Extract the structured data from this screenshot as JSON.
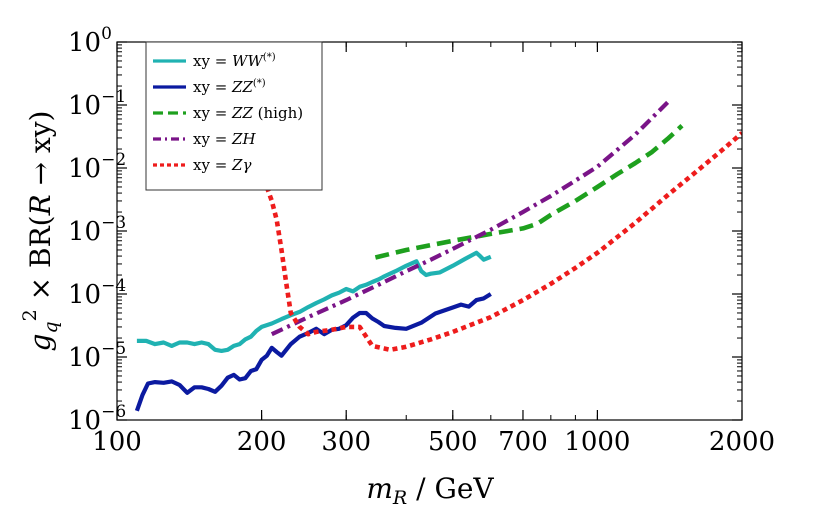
{
  "chart_data": {
    "type": "line",
    "title": "",
    "xlabel": {
      "var": "m",
      "sub": "R",
      "rest": " / GeV"
    },
    "ylabel": {
      "g": "g",
      "sub": "q",
      "sup": "2",
      "rest": " × BR(",
      "R": "R",
      "arrow": " → xy)"
    },
    "x_scale": "log",
    "y_scale": "log",
    "xlim": [
      100,
      2000
    ],
    "ylim": [
      1e-06,
      1
    ],
    "x_ticks": [
      {
        "value": 100,
        "label": "100"
      },
      {
        "value": 200,
        "label": "200"
      },
      {
        "value": 300,
        "label": "300"
      },
      {
        "value": 500,
        "label": "500"
      },
      {
        "value": 700,
        "label": "700"
      },
      {
        "value": 1000,
        "label": "1000"
      },
      {
        "value": 2000,
        "label": "2000"
      }
    ],
    "y_ticks": [
      {
        "value": 1,
        "base": "10",
        "exp": "0"
      },
      {
        "value": 0.1,
        "base": "10",
        "exp": "−1"
      },
      {
        "value": 0.01,
        "base": "10",
        "exp": "−2"
      },
      {
        "value": 0.001,
        "base": "10",
        "exp": "−3"
      },
      {
        "value": 0.0001,
        "base": "10",
        "exp": "−4"
      },
      {
        "value": 1e-05,
        "base": "10",
        "exp": "−5"
      },
      {
        "value": 1e-06,
        "base": "10",
        "exp": "−6"
      }
    ],
    "legend_position": "top-left",
    "series": [
      {
        "name": "xy = WW(*)",
        "label_prefix": "xy = ",
        "label_main": "WW",
        "label_sup": "(*)",
        "label_suffix": "",
        "color": "#20b2b2",
        "dash": "solid",
        "x": [
          110,
          115,
          120,
          125,
          130,
          135,
          140,
          145,
          150,
          155,
          160,
          165,
          170,
          175,
          180,
          185,
          190,
          195,
          200,
          210,
          220,
          230,
          240,
          250,
          260,
          270,
          280,
          290,
          300,
          310,
          320,
          330,
          340,
          350,
          360,
          380,
          400,
          420,
          430,
          440,
          450,
          470,
          500,
          530,
          560,
          570,
          580,
          600
        ],
        "y": [
          1.8e-05,
          1.8e-05,
          1.6e-05,
          1.7e-05,
          1.5e-05,
          1.7e-05,
          1.7e-05,
          1.6e-05,
          1.7e-05,
          1.6e-05,
          1.3e-05,
          1.25e-05,
          1.3e-05,
          1.5e-05,
          1.6e-05,
          1.9e-05,
          2.1e-05,
          2.6e-05,
          3e-05,
          3.4e-05,
          4e-05,
          4.6e-05,
          5.2e-05,
          6.2e-05,
          7.2e-05,
          8.2e-05,
          9.5e-05,
          0.000105,
          0.00012,
          0.00011,
          0.00013,
          0.00014,
          0.000155,
          0.00017,
          0.00019,
          0.00023,
          0.00028,
          0.00033,
          0.00023,
          0.0002,
          0.00021,
          0.00022,
          0.00028,
          0.00036,
          0.00045,
          0.0004,
          0.00035,
          0.00039
        ]
      },
      {
        "name": "xy = ZZ(*)",
        "label_prefix": "xy = ",
        "label_main": "ZZ",
        "label_sup": "(*)",
        "label_suffix": "",
        "color": "#0b1aa0",
        "dash": "solid",
        "x": [
          110,
          113,
          116,
          120,
          125,
          130,
          135,
          140,
          145,
          150,
          155,
          160,
          165,
          170,
          175,
          180,
          185,
          190,
          195,
          200,
          205,
          210,
          215,
          220,
          225,
          230,
          240,
          250,
          260,
          270,
          280,
          290,
          300,
          310,
          320,
          330,
          340,
          350,
          360,
          380,
          400,
          430,
          460,
          500,
          520,
          540,
          560,
          580,
          600
        ],
        "y": [
          1.4e-06,
          2.5e-06,
          3.8e-06,
          4e-06,
          3.9e-06,
          4.1e-06,
          3.6e-06,
          2.7e-06,
          3.3e-06,
          3.3e-06,
          3.1e-06,
          2.8e-06,
          3.5e-06,
          4.7e-06,
          5.2e-06,
          4.4e-06,
          4.6e-06,
          6e-06,
          6.4e-06,
          9e-06,
          1.05e-05,
          1.4e-05,
          1.2e-05,
          1.05e-05,
          1.3e-05,
          1.6e-05,
          2.1e-05,
          2.4e-05,
          2.8e-05,
          2.3e-05,
          2.7e-05,
          2.8e-05,
          3.2e-05,
          4.2e-05,
          5e-05,
          5e-05,
          4.1e-05,
          3.6e-05,
          3.1e-05,
          2.9e-05,
          2.8e-05,
          3.5e-05,
          4.9e-05,
          6.1e-05,
          6.8e-05,
          6.3e-05,
          8e-05,
          8.5e-05,
          0.0001
        ]
      },
      {
        "name": "xy = ZZ (high)",
        "label_prefix": "xy = ",
        "label_main": "ZZ",
        "label_sup": "",
        "label_suffix": " (high)",
        "color": "#1ea01e",
        "dash": "long",
        "x": [
          345,
          400,
          500,
          600,
          700,
          750,
          800,
          900,
          1000,
          1100,
          1200,
          1300,
          1400,
          1500
        ],
        "y": [
          0.00038,
          0.0005,
          0.0007,
          0.0009,
          0.0011,
          0.0013,
          0.0018,
          0.003,
          0.005,
          0.008,
          0.012,
          0.018,
          0.029,
          0.047
        ]
      },
      {
        "name": "xy = ZH",
        "label_prefix": "xy = ",
        "label_main": "ZH",
        "label_sup": "",
        "label_suffix": "",
        "color": "#7a1488",
        "dash": "dashdot",
        "x": [
          210,
          250,
          300,
          350,
          400,
          450,
          500,
          600,
          700,
          800,
          900,
          1000,
          1200,
          1400
        ],
        "y": [
          2.3e-05,
          4.3e-05,
          8e-05,
          0.00014,
          0.00023,
          0.00035,
          0.00052,
          0.00105,
          0.002,
          0.0036,
          0.0063,
          0.0105,
          0.034,
          0.11
        ]
      },
      {
        "name": "xy = Zγ",
        "label_prefix": "xy = ",
        "label_main": "Zγ",
        "label_sup": "",
        "label_suffix": "",
        "color": "#ee1c1c",
        "dash": "short",
        "x": [
          205,
          210,
          215,
          220,
          225,
          230,
          240,
          250,
          260,
          280,
          300,
          320,
          340,
          370,
          400,
          450,
          500,
          600,
          700,
          800,
          900,
          1000,
          1200,
          1400,
          1600,
          1800,
          2000
        ],
        "y": [
          0.005,
          0.003,
          0.0015,
          0.0005,
          0.00015,
          5e-05,
          3e-05,
          2.3e-05,
          2.5e-05,
          2.7e-05,
          3e-05,
          3e-05,
          1.5e-05,
          1.3e-05,
          1.45e-05,
          1.9e-05,
          2.5e-05,
          4.3e-05,
          8e-05,
          0.000145,
          0.00026,
          0.00045,
          0.00135,
          0.0037,
          0.0085,
          0.018,
          0.036
        ]
      }
    ]
  }
}
